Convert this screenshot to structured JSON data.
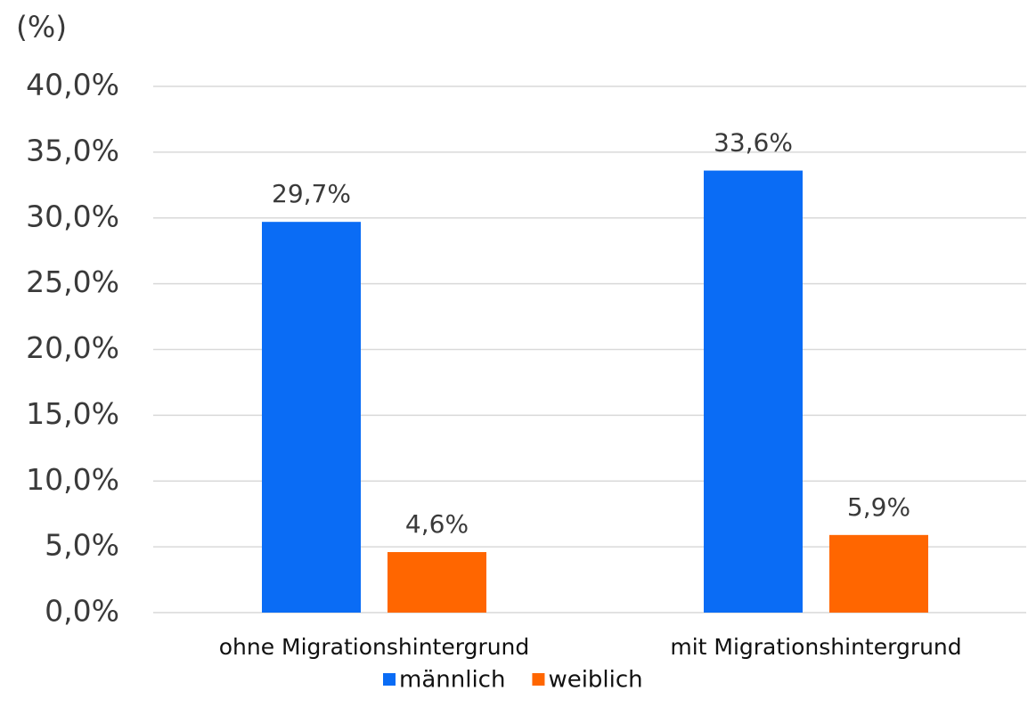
{
  "chart_data": {
    "type": "bar",
    "y_axis_label": "(%)",
    "categories": [
      "ohne Migrationshintergrund",
      "mit Migrationshintergrund"
    ],
    "series": [
      {
        "name": "männlich",
        "color": "#0a6cf5",
        "values": [
          29.7,
          33.6
        ],
        "value_labels": [
          "29,7%",
          "33,6%"
        ]
      },
      {
        "name": "weiblich",
        "color": "#ff6600",
        "values": [
          4.6,
          5.9
        ],
        "value_labels": [
          "4,6%",
          "5,9%"
        ]
      }
    ],
    "ylim": [
      0,
      40
    ],
    "yticks": [
      {
        "value": 0,
        "label": "0,0%"
      },
      {
        "value": 5,
        "label": "5,0%"
      },
      {
        "value": 10,
        "label": "10,0%"
      },
      {
        "value": 15,
        "label": "15,0%"
      },
      {
        "value": 20,
        "label": "20,0%"
      },
      {
        "value": 25,
        "label": "25,0%"
      },
      {
        "value": 30,
        "label": "30,0%"
      },
      {
        "value": 35,
        "label": "35,0%"
      },
      {
        "value": 40,
        "label": "40,0%"
      }
    ],
    "grid": true,
    "legend": "bottom"
  }
}
